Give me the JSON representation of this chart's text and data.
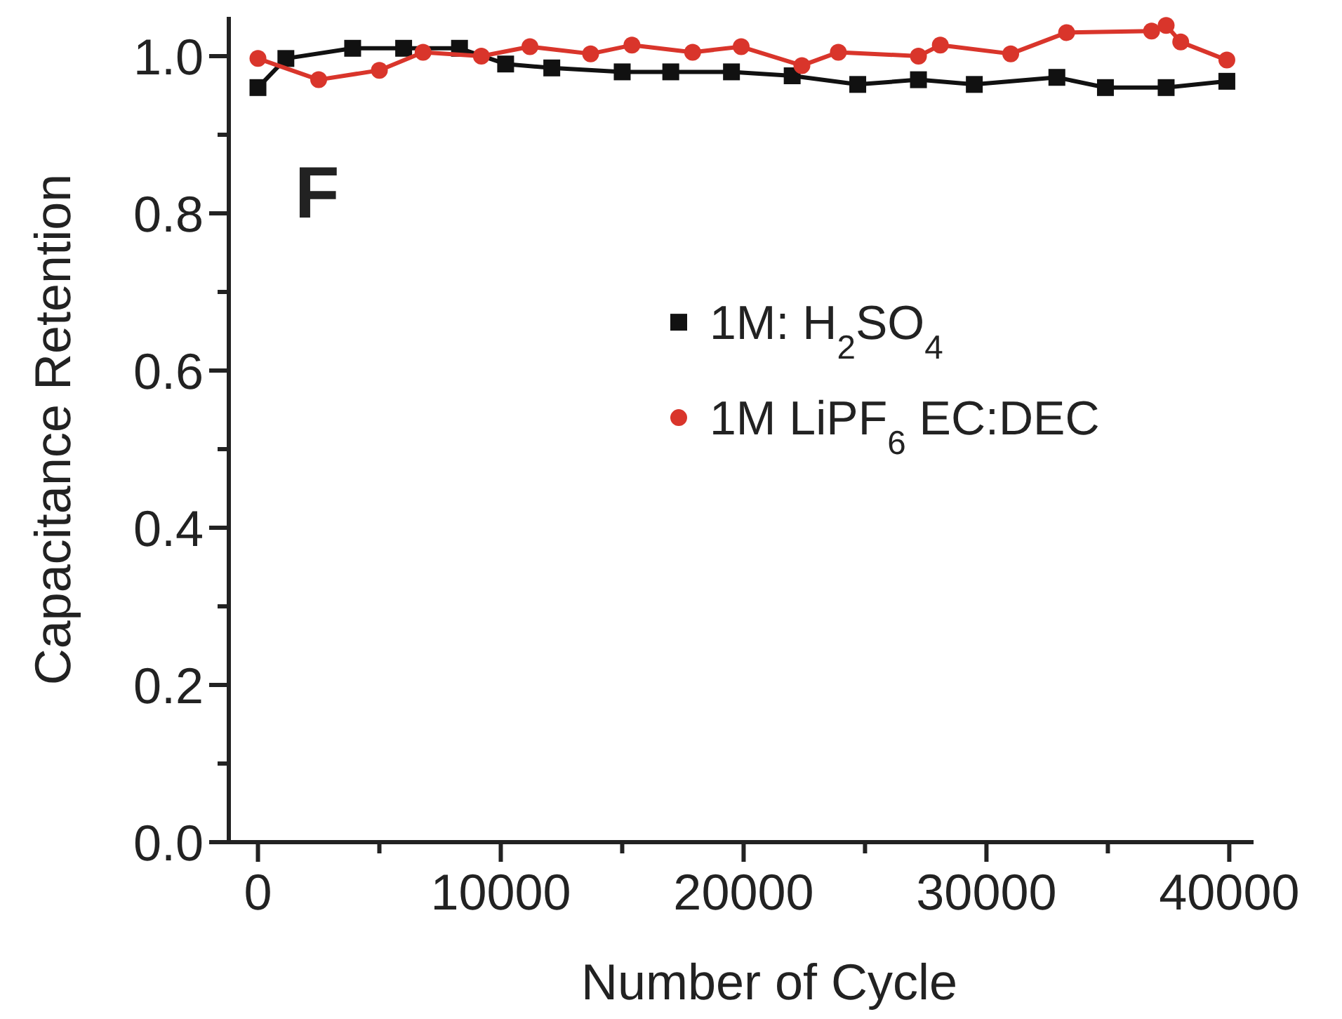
{
  "chart_data": {
    "type": "line",
    "xlabel": "Number of Cycle",
    "ylabel": "Capacitance Retention",
    "annotations": [
      "F"
    ],
    "xlim": [
      -1200,
      41000
    ],
    "ylim": [
      0,
      1.05
    ],
    "xticks": [
      0,
      {
        "value": 5000,
        "label": null
      },
      10000,
      {
        "value": 15000,
        "label": null
      },
      20000,
      {
        "value": 25000,
        "label": null
      },
      30000,
      {
        "value": 35000,
        "label": null
      },
      40000
    ],
    "yticks": [
      {
        "value": 0,
        "label": "0.0"
      },
      {
        "value": 0.1,
        "label": null
      },
      {
        "value": 0.2,
        "label": "0.2"
      },
      {
        "value": 0.3,
        "label": null
      },
      {
        "value": 0.4,
        "label": "0.4"
      },
      {
        "value": 0.5,
        "label": null
      },
      {
        "value": 0.6,
        "label": "0.6"
      },
      {
        "value": 0.7,
        "label": null
      },
      {
        "value": 0.8,
        "label": "0.8"
      },
      {
        "value": 0.9,
        "label": null
      },
      {
        "value": 1,
        "label": "1.0"
      }
    ],
    "grid": false,
    "legend": "right",
    "series": [
      {
        "name": "1M: H$_{2}$SO$_{4}$",
        "color": "#111111",
        "marker": "square",
        "x": [
          0,
          1150,
          3900,
          6000,
          8300,
          10200,
          12100,
          15000,
          17000,
          19500,
          22000,
          24700,
          27200,
          29500,
          32900,
          34900,
          37400,
          39900
        ],
        "values": [
          0.96,
          0.997,
          1.01,
          1.01,
          1.01,
          0.99,
          0.985,
          0.98,
          0.98,
          0.98,
          0.975,
          0.964,
          0.97,
          0.964,
          0.973,
          0.96,
          0.96,
          0.968
        ]
      },
      {
        "name": "1M LiPF$_{6}$ EC:DEC",
        "color": "#d9352b",
        "marker": "circle",
        "x": [
          0,
          2500,
          5000,
          6800,
          9200,
          11200,
          13700,
          15400,
          17900,
          19900,
          22400,
          23900,
          27200,
          28100,
          31000,
          33300,
          36800,
          37400,
          38000,
          39900
        ],
        "values": [
          0.997,
          0.97,
          0.982,
          1.005,
          1.0,
          1.012,
          1.003,
          1.014,
          1.005,
          1.012,
          0.988,
          1.005,
          1.0,
          1.014,
          1.003,
          1.03,
          1.032,
          1.039,
          1.018,
          0.995
        ]
      }
    ]
  }
}
